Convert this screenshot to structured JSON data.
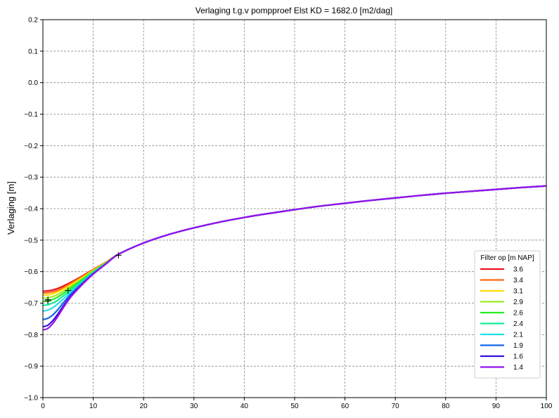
{
  "chart_data": {
    "type": "line",
    "title": "Verlaging t.g.v pompproef Elst KD = 1682.0 [m2/dag]",
    "xlabel": "",
    "ylabel": "Verlaging [m]",
    "xlim": [
      0,
      100
    ],
    "ylim": [
      -1.0,
      0.2
    ],
    "xticks": [
      0,
      10,
      20,
      30,
      40,
      50,
      60,
      70,
      80,
      90,
      100
    ],
    "yticks": [
      -1.0,
      -0.9,
      -0.8,
      -0.7,
      -0.6,
      -0.5,
      -0.4,
      -0.3,
      -0.2,
      -0.1,
      0.0,
      0.1,
      0.2
    ],
    "xtick_labels": [
      "0",
      "10",
      "20",
      "30",
      "40",
      "50",
      "60",
      "70",
      "80",
      "90",
      "100"
    ],
    "ytick_labels": [
      "−1.0",
      "−0.9",
      "−0.8",
      "−0.7",
      "−0.6",
      "−0.5",
      "−0.4",
      "−0.3",
      "−0.2",
      "−0.1",
      "0.0",
      "0.1",
      "0.2"
    ],
    "grid": true,
    "legend": {
      "title": "Filter op [m NAP]",
      "position": "lower-right"
    },
    "common_curve": {
      "x": [
        15,
        20,
        25,
        30,
        35,
        40,
        45,
        50,
        55,
        60,
        65,
        70,
        75,
        80,
        85,
        90,
        95,
        100
      ],
      "y": [
        -0.545,
        -0.509,
        -0.482,
        -0.461,
        -0.443,
        -0.428,
        -0.415,
        -0.403,
        -0.392,
        -0.383,
        -0.374,
        -0.366,
        -0.358,
        -0.351,
        -0.345,
        -0.339,
        -0.333,
        -0.328
      ]
    },
    "series": [
      {
        "name": "3.6",
        "color": "#ee1122",
        "x": [
          0,
          1,
          2,
          3,
          4,
          5,
          6,
          8,
          10,
          12.5,
          15
        ],
        "y": [
          -0.662,
          -0.661,
          -0.658,
          -0.653,
          -0.646,
          -0.638,
          -0.63,
          -0.612,
          -0.593,
          -0.57,
          -0.545
        ]
      },
      {
        "name": "3.4",
        "color": "#ff6611",
        "x": [
          0,
          1,
          2,
          3,
          4,
          5,
          6,
          8,
          10,
          12.5,
          15
        ],
        "y": [
          -0.668,
          -0.667,
          -0.664,
          -0.659,
          -0.651,
          -0.642,
          -0.633,
          -0.614,
          -0.594,
          -0.57,
          -0.545
        ]
      },
      {
        "name": "3.1",
        "color": "#ffdd00",
        "x": [
          0,
          1,
          2,
          3,
          4,
          5,
          6,
          8,
          10,
          12.5,
          15
        ],
        "y": [
          -0.675,
          -0.674,
          -0.67,
          -0.664,
          -0.656,
          -0.647,
          -0.637,
          -0.617,
          -0.596,
          -0.571,
          -0.545
        ]
      },
      {
        "name": "2.9",
        "color": "#99ee22",
        "x": [
          0,
          1,
          2,
          3,
          4,
          5,
          6,
          8,
          10,
          12.5,
          15
        ],
        "y": [
          -0.684,
          -0.683,
          -0.679,
          -0.672,
          -0.663,
          -0.653,
          -0.642,
          -0.62,
          -0.598,
          -0.572,
          -0.545
        ]
      },
      {
        "name": "2.6",
        "color": "#22ee22",
        "x": [
          0,
          1,
          2,
          3,
          4,
          5,
          6,
          8,
          10,
          12.5,
          15
        ],
        "y": [
          -0.694,
          -0.693,
          -0.688,
          -0.68,
          -0.67,
          -0.659,
          -0.647,
          -0.624,
          -0.6,
          -0.573,
          -0.545
        ]
      },
      {
        "name": "2.4",
        "color": "#11ee99",
        "x": [
          0,
          1,
          2,
          3,
          4,
          5,
          6,
          8,
          10,
          12.5,
          15
        ],
        "y": [
          -0.707,
          -0.705,
          -0.699,
          -0.69,
          -0.678,
          -0.666,
          -0.653,
          -0.628,
          -0.602,
          -0.574,
          -0.545
        ]
      },
      {
        "name": "2.1",
        "color": "#22ddee",
        "x": [
          0,
          1,
          2,
          3,
          4,
          5,
          6,
          8,
          10,
          12.5,
          15
        ],
        "y": [
          -0.725,
          -0.722,
          -0.714,
          -0.702,
          -0.688,
          -0.673,
          -0.659,
          -0.631,
          -0.604,
          -0.575,
          -0.545
        ]
      },
      {
        "name": "1.9",
        "color": "#1166ee",
        "x": [
          0,
          1,
          2,
          3,
          4,
          5,
          6,
          8,
          10,
          12.5,
          15
        ],
        "y": [
          -0.752,
          -0.748,
          -0.737,
          -0.72,
          -0.7,
          -0.681,
          -0.664,
          -0.634,
          -0.606,
          -0.575,
          -0.545
        ]
      },
      {
        "name": "1.6",
        "color": "#3311dd",
        "x": [
          0,
          1,
          2,
          3,
          4,
          5,
          6,
          8,
          10,
          12.5,
          15
        ],
        "y": [
          -0.775,
          -0.77,
          -0.755,
          -0.734,
          -0.71,
          -0.688,
          -0.669,
          -0.637,
          -0.607,
          -0.576,
          -0.545
        ]
      },
      {
        "name": "1.4",
        "color": "#9911ee",
        "x": [
          0,
          1,
          2,
          3,
          4,
          5,
          6,
          8,
          10,
          12.5,
          15
        ],
        "y": [
          -0.785,
          -0.78,
          -0.764,
          -0.741,
          -0.716,
          -0.692,
          -0.672,
          -0.638,
          -0.608,
          -0.576,
          -0.545
        ]
      }
    ],
    "markers": {
      "symbol": "+",
      "color": "#000000",
      "points": [
        {
          "x": 1,
          "y": -0.693
        },
        {
          "x": 1,
          "y": -0.689
        },
        {
          "x": 5,
          "y": -0.66
        },
        {
          "x": 15,
          "y": -0.548
        }
      ]
    }
  }
}
